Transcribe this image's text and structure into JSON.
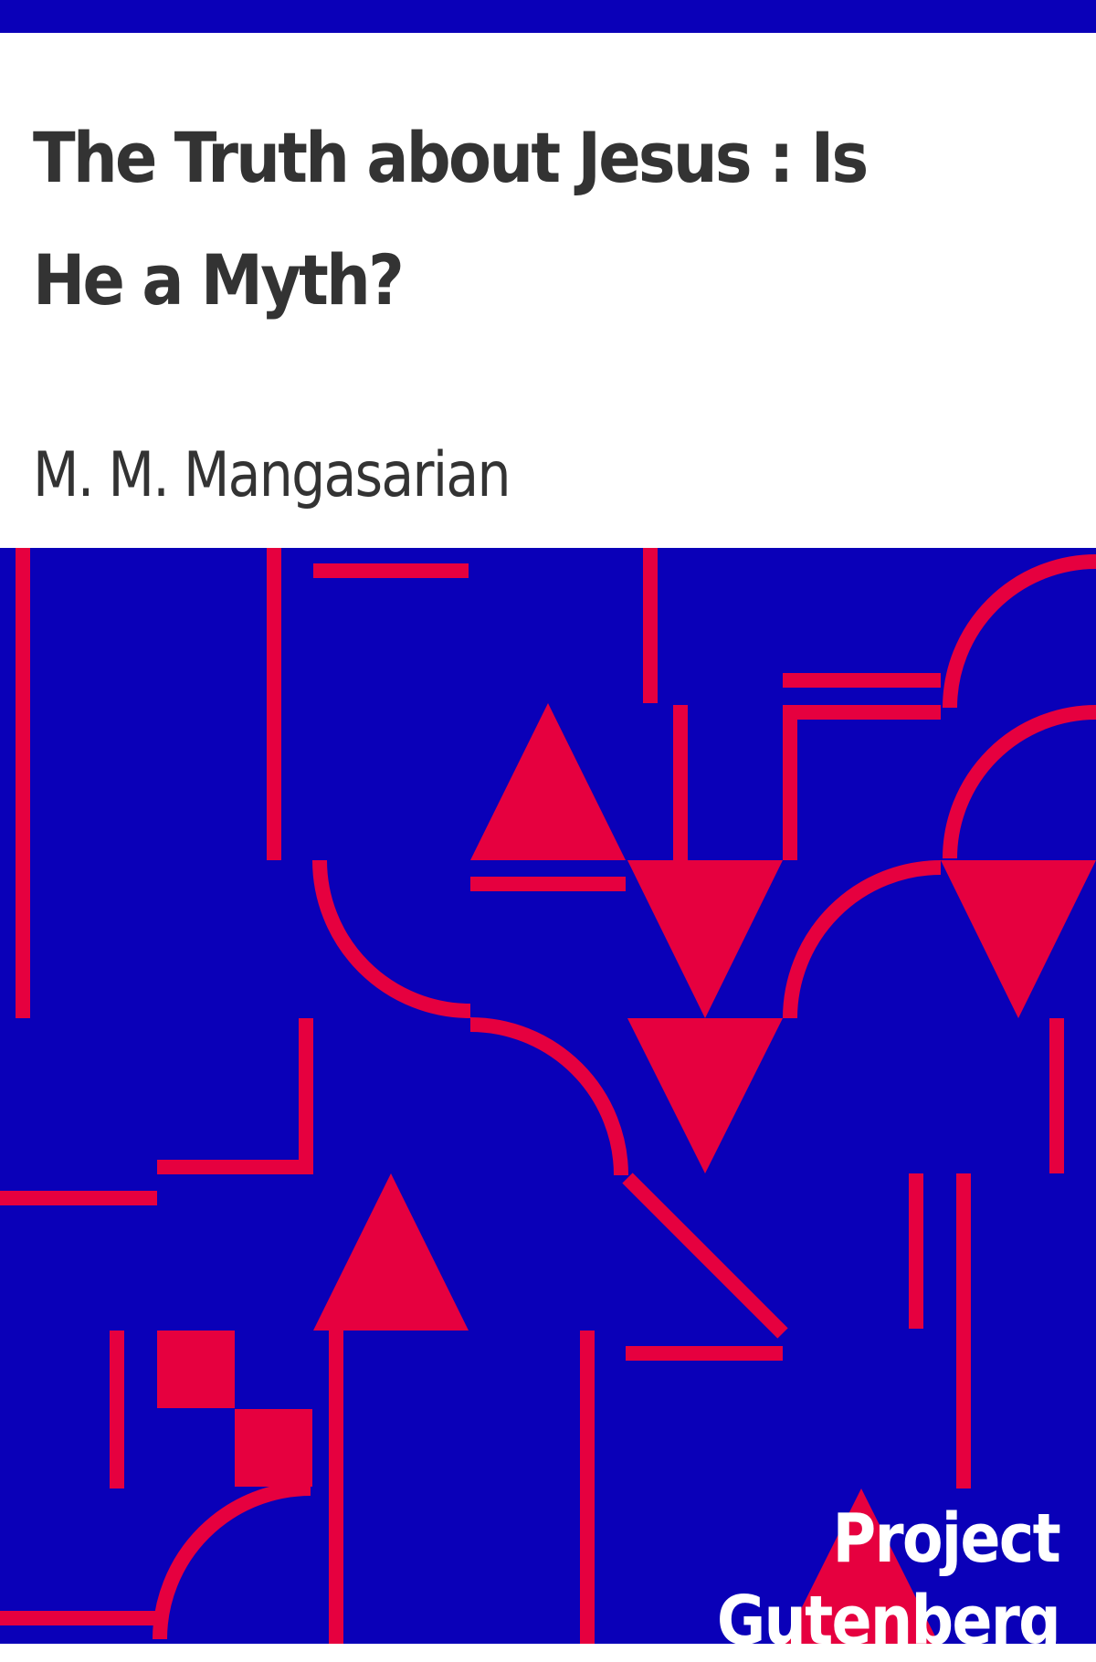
{
  "cover": {
    "title": "The Truth about Jesus : Is He a Myth?",
    "author": "M. M. Mangasarian",
    "publisher": "Project Gutenberg"
  },
  "colors": {
    "background": "#0a00b8",
    "pattern": "#e6003f",
    "header_background": "#ffffff",
    "header_text": "#333333",
    "publisher_text": "#ffffff"
  },
  "decoration": {
    "pattern_icon": "geometric-lines-triangles-arcs-pattern"
  }
}
